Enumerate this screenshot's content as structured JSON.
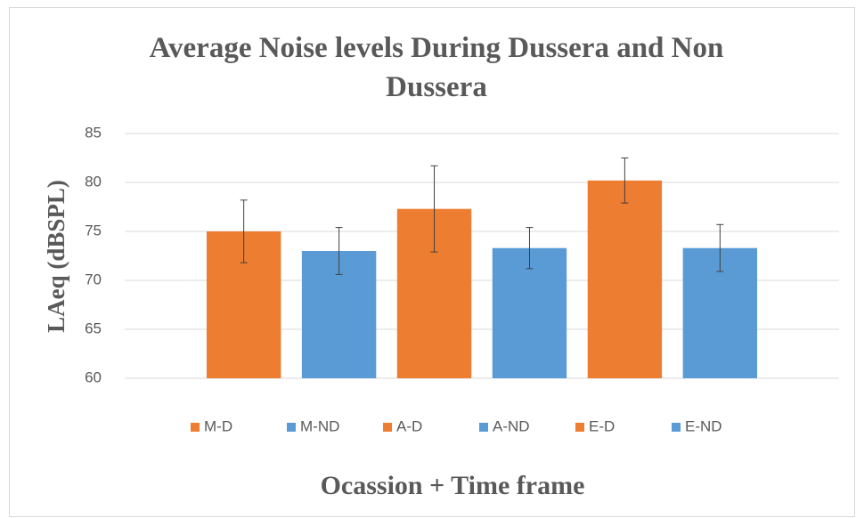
{
  "chart_data": {
    "type": "bar",
    "title": "Average Noise levels During Dussera and Non Dussera",
    "y_label": "LAeq (dBSPL)",
    "x_label": "Ocassion + Time frame",
    "categories": [
      null
    ],
    "series": [
      {
        "name": "M-D",
        "color": "#ed7d31",
        "values": [
          75
        ],
        "errors": [
          3.2
        ]
      },
      {
        "name": "M-ND",
        "color": "#5b9bd5",
        "values": [
          73
        ],
        "errors": [
          2.4
        ]
      },
      {
        "name": "A-D",
        "color": "#ed7d31",
        "values": [
          77.3
        ],
        "errors": [
          4.4
        ]
      },
      {
        "name": "A-ND",
        "color": "#5b9bd5",
        "values": [
          73.3
        ],
        "errors": [
          2.1
        ]
      },
      {
        "name": "E-D",
        "color": "#ed7d31",
        "values": [
          80.2
        ],
        "errors": [
          2.3
        ]
      },
      {
        "name": "E-ND",
        "color": "#5b9bd5",
        "values": [
          73.3
        ],
        "errors": [
          2.4
        ]
      }
    ],
    "ylim": [
      60,
      85
    ],
    "yticks": [
      60,
      65,
      70,
      75,
      80,
      85
    ],
    "grid": true,
    "legend": "bottom"
  }
}
